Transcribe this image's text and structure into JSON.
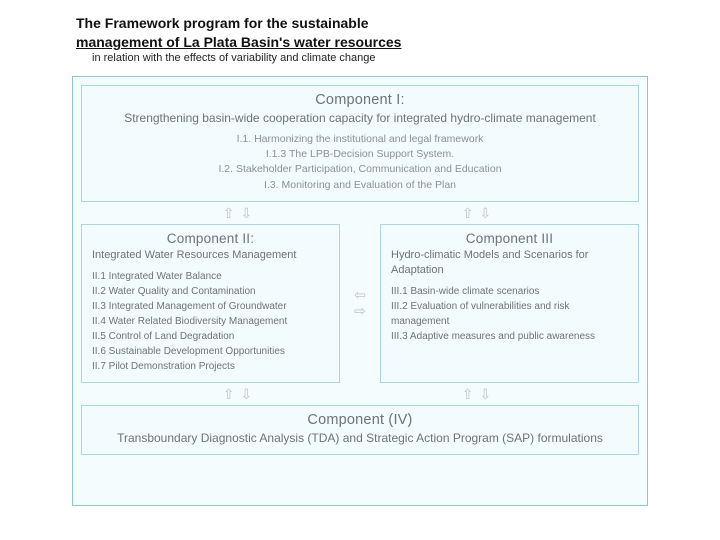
{
  "title_line1": "The Framework program for the sustainable",
  "title_line2": "management of La Plata Basin's water resources",
  "subtitle": "in relation with the effects of variability and climate change",
  "colors": {
    "outer_border": "#8fc6d3",
    "outer_bg": "#f5fcfe",
    "box_border": "#aad6e0",
    "box_bg": "#f2fbfd",
    "arrow": "#b9c6ca",
    "text_heading": "#6d7478",
    "text_body": "#8a9297"
  },
  "c1": {
    "title": "Component I:",
    "sub": "Strengthening basin-wide cooperation capacity for integrated hydro-climate management",
    "items": [
      "I.1. Harmonizing the institutional and legal framework",
      "I.1.3 The LPB-Decision Support System.",
      "I.2. Stakeholder Participation, Communication and Education",
      "I.3. Monitoring and Evaluation of the Plan"
    ]
  },
  "c2": {
    "title": "Component II:",
    "sub": "Integrated Water Resources Management",
    "items": [
      "II.1 Integrated Water Balance",
      "II.2 Water Quality and Contamination",
      "II.3 Integrated Management of Groundwater",
      "II.4 Water Related Biodiversity Management",
      "II.5 Control of Land Degradation",
      "II.6 Sustainable Development Opportunities",
      "II.7 Pilot Demonstration Projects"
    ]
  },
  "c3": {
    "title": "Component III",
    "sub": "Hydro-climatic Models and Scenarios for Adaptation",
    "items": [
      "III.1 Basin-wide climate scenarios",
      "III.2 Evaluation of vulnerabilities and risk management",
      "III.3 Adaptive measures and public awareness"
    ]
  },
  "c4": {
    "title": "Component (IV)",
    "sub": "Transboundary Diagnostic Analysis (TDA) and Strategic Action Program (SAP) formulations"
  },
  "arrows": {
    "updown_pair": "⇧⇩",
    "leftright_stack_a": "⇦",
    "leftright_stack_b": "⇨"
  }
}
